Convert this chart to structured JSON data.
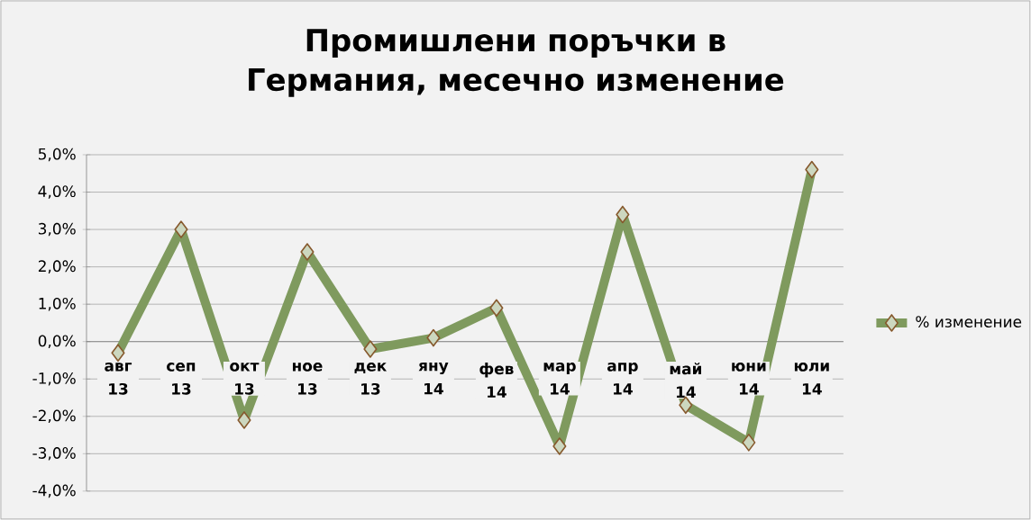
{
  "chart_data": {
    "type": "line",
    "title": "Промишлени поръчки в Германия, месечно изменение",
    "categories": [
      "авг 13",
      "сеп 13",
      "окт 13",
      "ное 13",
      "дек 13",
      "яну 14",
      "фев 14",
      "мар 14",
      "апр 14",
      "май 14",
      "юни 14",
      "юли 14"
    ],
    "series": [
      {
        "name": "% изменение",
        "color": "#7f9a5e",
        "values": [
          -0.3,
          3.0,
          -2.1,
          2.4,
          -0.2,
          0.1,
          0.9,
          -2.8,
          3.4,
          -1.7,
          -2.7,
          4.6
        ]
      }
    ],
    "ylim": [
      -4,
      5
    ],
    "yticks": [
      {
        "value": -4,
        "label": "-4,0%"
      },
      {
        "value": -3,
        "label": "-3,0%"
      },
      {
        "value": -2,
        "label": "-2,0%"
      },
      {
        "value": -1,
        "label": "-1,0%"
      },
      {
        "value": 0,
        "label": "0,0%"
      },
      {
        "value": 1,
        "label": "1,0%"
      },
      {
        "value": 2,
        "label": "2,0%"
      },
      {
        "value": 3,
        "label": "3,0%"
      },
      {
        "value": 4,
        "label": "4,0%"
      },
      {
        "value": 5,
        "label": "5,0%"
      }
    ],
    "grid": "y",
    "legend": "right",
    "marker": "diamond",
    "line_style": "solid"
  }
}
